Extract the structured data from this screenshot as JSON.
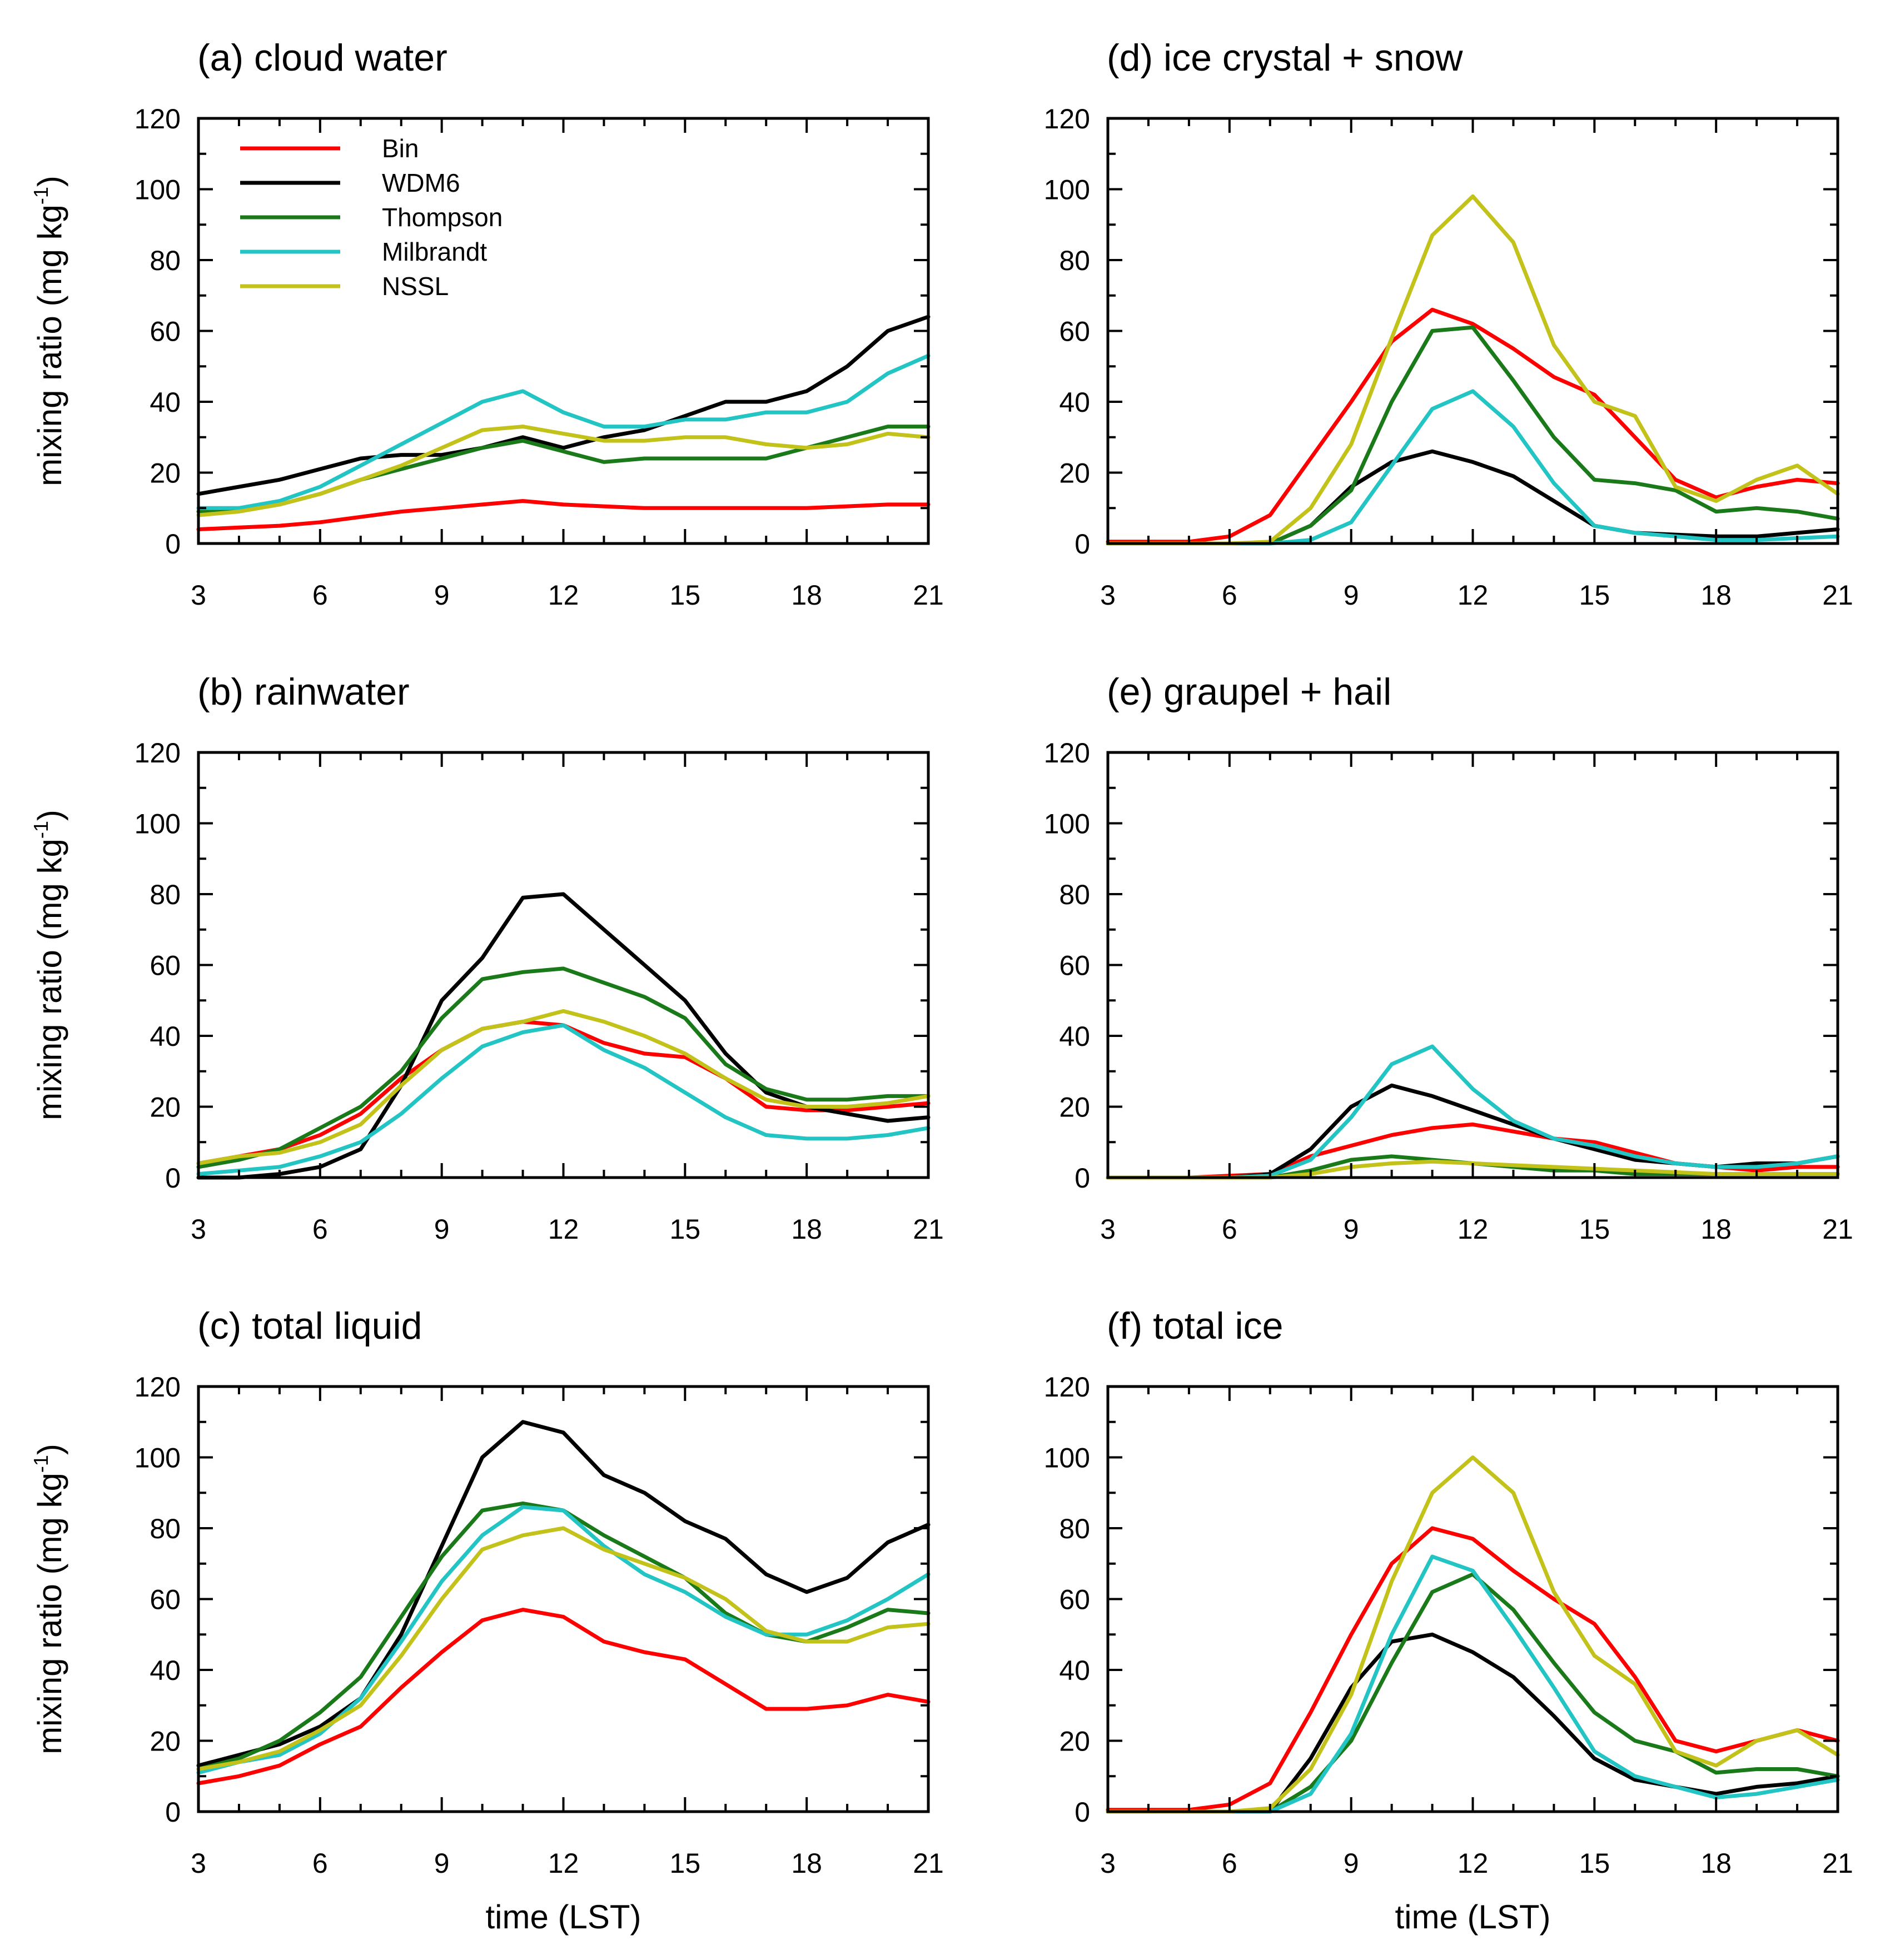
{
  "figure": {
    "ylabel_main": "mixing ratio (mg kg",
    "ylabel_sup": "-1",
    "ylabel_close": ")",
    "xlabel": "time (LST)"
  },
  "legend": [
    {
      "name": "Bin",
      "color": "#ff0000"
    },
    {
      "name": "WDM6",
      "color": "#000000"
    },
    {
      "name": "Thompson",
      "color": "#1a7a1a"
    },
    {
      "name": "Milbrandt",
      "color": "#22c4c4"
    },
    {
      "name": "NSSL",
      "color": "#c2c21a"
    }
  ],
  "chart_data": [
    {
      "type": "line",
      "title": "(a) cloud water",
      "xlabel": "",
      "ylabel": "mixing ratio (mg kg-1)",
      "xlim": [
        3,
        21
      ],
      "ylim": [
        0,
        120
      ],
      "xticks": [
        "3",
        "6",
        "9",
        "12",
        "15",
        "18",
        "21"
      ],
      "yticks": [
        "0",
        "20",
        "40",
        "60",
        "80",
        "100",
        "120"
      ],
      "x": [
        3,
        4,
        5,
        6,
        7,
        8,
        9,
        10,
        11,
        12,
        13,
        14,
        15,
        16,
        17,
        18,
        19,
        20,
        21
      ],
      "series": [
        {
          "name": "Bin",
          "values": [
            4,
            4.5,
            5,
            6,
            7.5,
            9,
            10,
            11,
            12,
            11,
            10.5,
            10,
            10,
            10,
            10,
            10,
            10.5,
            11,
            11
          ]
        },
        {
          "name": "WDM6",
          "values": [
            14,
            16,
            18,
            21,
            24,
            25,
            25,
            27,
            30,
            27,
            30,
            32,
            36,
            40,
            40,
            43,
            50,
            60,
            64
          ]
        },
        {
          "name": "Thompson",
          "values": [
            9,
            10,
            11,
            14,
            18,
            21,
            24,
            27,
            29,
            26,
            23,
            24,
            24,
            24,
            24,
            27,
            30,
            33,
            33
          ]
        },
        {
          "name": "Milbrandt",
          "values": [
            10,
            10,
            12,
            16,
            22,
            28,
            34,
            40,
            43,
            37,
            33,
            33,
            35,
            35,
            37,
            37,
            40,
            48,
            53
          ]
        },
        {
          "name": "NSSL",
          "values": [
            8,
            9,
            11,
            14,
            18,
            22,
            27,
            32,
            33,
            31,
            29,
            29,
            30,
            30,
            28,
            27,
            28,
            31,
            30
          ]
        }
      ]
    },
    {
      "type": "line",
      "title": "(d) ice crystal + snow",
      "xlabel": "",
      "ylabel": "",
      "xlim": [
        3,
        21
      ],
      "ylim": [
        0,
        120
      ],
      "xticks": [
        "3",
        "6",
        "9",
        "12",
        "15",
        "18",
        "21"
      ],
      "yticks": [
        "0",
        "20",
        "40",
        "60",
        "80",
        "100",
        "120"
      ],
      "x": [
        3,
        4,
        5,
        6,
        7,
        8,
        9,
        10,
        11,
        12,
        13,
        14,
        15,
        16,
        17,
        18,
        19,
        20,
        21
      ],
      "series": [
        {
          "name": "Bin",
          "values": [
            0.5,
            0.5,
            0.5,
            2,
            8,
            24,
            40,
            57,
            66,
            62,
            55,
            47,
            42,
            30,
            18,
            13,
            16,
            18,
            17
          ]
        },
        {
          "name": "WDM6",
          "values": [
            0,
            0,
            0,
            0,
            0,
            5,
            16,
            23,
            26,
            23,
            19,
            12,
            5,
            3,
            2.5,
            2,
            2,
            3,
            4
          ]
        },
        {
          "name": "Thompson",
          "values": [
            0,
            0,
            0,
            0,
            0,
            5,
            15,
            40,
            60,
            61,
            46,
            30,
            18,
            17,
            15,
            9,
            10,
            9,
            7
          ]
        },
        {
          "name": "Milbrandt",
          "values": [
            0,
            0,
            0,
            0,
            0,
            1,
            6,
            22,
            38,
            43,
            33,
            17,
            5,
            3,
            2,
            1,
            1,
            1.5,
            2
          ]
        },
        {
          "name": "NSSL",
          "values": [
            0,
            0,
            0,
            0,
            0.5,
            10,
            28,
            58,
            87,
            98,
            85,
            56,
            40,
            36,
            16,
            12,
            18,
            22,
            14
          ]
        }
      ]
    },
    {
      "type": "line",
      "title": "(b) rainwater",
      "xlabel": "",
      "ylabel": "mixing ratio (mg kg-1)",
      "xlim": [
        3,
        21
      ],
      "ylim": [
        0,
        120
      ],
      "xticks": [
        "3",
        "6",
        "9",
        "12",
        "15",
        "18",
        "21"
      ],
      "yticks": [
        "0",
        "20",
        "40",
        "60",
        "80",
        "100",
        "120"
      ],
      "x": [
        3,
        4,
        5,
        6,
        7,
        8,
        9,
        10,
        11,
        12,
        13,
        14,
        15,
        16,
        17,
        18,
        19,
        20,
        21
      ],
      "series": [
        {
          "name": "Bin",
          "values": [
            4,
            6,
            8,
            12,
            18,
            28,
            36,
            42,
            44,
            43,
            38,
            35,
            34,
            28,
            20,
            19,
            19,
            20,
            21
          ]
        },
        {
          "name": "WDM6",
          "values": [
            0,
            0,
            1,
            3,
            8,
            26,
            50,
            62,
            79,
            80,
            70,
            60,
            50,
            35,
            24,
            20,
            18,
            16,
            17
          ]
        },
        {
          "name": "Thompson",
          "values": [
            3,
            5,
            8,
            14,
            20,
            30,
            45,
            56,
            58,
            59,
            55,
            51,
            45,
            32,
            25,
            22,
            22,
            23,
            23
          ]
        },
        {
          "name": "Milbrandt",
          "values": [
            1,
            2,
            3,
            6,
            10,
            18,
            28,
            37,
            41,
            43,
            36,
            31,
            24,
            17,
            12,
            11,
            11,
            12,
            14
          ]
        },
        {
          "name": "NSSL",
          "values": [
            4,
            6,
            7,
            10,
            15,
            26,
            36,
            42,
            44,
            47,
            44,
            40,
            35,
            28,
            22,
            20,
            20,
            21,
            23
          ]
        }
      ]
    },
    {
      "type": "line",
      "title": "(e) graupel + hail",
      "xlabel": "",
      "ylabel": "",
      "xlim": [
        3,
        21
      ],
      "ylim": [
        0,
        120
      ],
      "xticks": [
        "3",
        "6",
        "9",
        "12",
        "15",
        "18",
        "21"
      ],
      "yticks": [
        "0",
        "20",
        "40",
        "60",
        "80",
        "100",
        "120"
      ],
      "x": [
        3,
        4,
        5,
        6,
        7,
        8,
        9,
        10,
        11,
        12,
        13,
        14,
        15,
        16,
        17,
        18,
        19,
        20,
        21
      ],
      "series": [
        {
          "name": "Bin",
          "values": [
            0,
            0,
            0,
            0.5,
            1,
            6,
            9,
            12,
            14,
            15,
            13,
            11,
            10,
            7,
            4,
            3,
            2,
            3,
            3
          ]
        },
        {
          "name": "WDM6",
          "values": [
            0,
            0,
            0,
            0,
            1,
            8,
            20,
            26,
            23,
            19,
            15,
            11,
            8,
            5,
            4,
            3,
            4,
            4,
            6
          ]
        },
        {
          "name": "Thompson",
          "values": [
            0,
            0,
            0,
            0,
            0,
            2,
            5,
            6,
            5,
            4,
            3,
            2,
            2,
            1,
            1,
            1,
            1,
            1,
            1
          ]
        },
        {
          "name": "Milbrandt",
          "values": [
            0,
            0,
            0,
            0,
            0.5,
            5,
            17,
            32,
            37,
            25,
            16,
            11,
            9,
            6,
            4,
            3,
            3,
            4,
            6
          ]
        },
        {
          "name": "NSSL",
          "values": [
            0,
            0,
            0,
            0,
            0,
            1,
            3,
            4,
            4.5,
            4,
            3.5,
            3,
            2.5,
            2,
            1.5,
            1,
            1,
            1,
            1
          ]
        }
      ]
    },
    {
      "type": "line",
      "title": "(c) total liquid",
      "xlabel": "time (LST)",
      "ylabel": "mixing ratio (mg kg-1)",
      "xlim": [
        3,
        21
      ],
      "ylim": [
        0,
        120
      ],
      "xticks": [
        "3",
        "6",
        "9",
        "12",
        "15",
        "18",
        "21"
      ],
      "yticks": [
        "0",
        "20",
        "40",
        "60",
        "80",
        "100",
        "120"
      ],
      "x": [
        3,
        4,
        5,
        6,
        7,
        8,
        9,
        10,
        11,
        12,
        13,
        14,
        15,
        16,
        17,
        18,
        19,
        20,
        21
      ],
      "series": [
        {
          "name": "Bin",
          "values": [
            8,
            10,
            13,
            19,
            24,
            35,
            45,
            54,
            57,
            55,
            48,
            45,
            43,
            36,
            29,
            29,
            30,
            33,
            31
          ]
        },
        {
          "name": "WDM6",
          "values": [
            13,
            16,
            19,
            24,
            32,
            50,
            75,
            100,
            110,
            107,
            95,
            90,
            82,
            77,
            67,
            62,
            66,
            76,
            81
          ]
        },
        {
          "name": "Thompson",
          "values": [
            12,
            15,
            20,
            28,
            38,
            55,
            72,
            85,
            87,
            85,
            78,
            72,
            66,
            56,
            50,
            48,
            52,
            57,
            56
          ]
        },
        {
          "name": "Milbrandt",
          "values": [
            11,
            14,
            16,
            22,
            32,
            48,
            65,
            78,
            86,
            85,
            75,
            67,
            62,
            55,
            50,
            50,
            54,
            60,
            67
          ]
        },
        {
          "name": "NSSL",
          "values": [
            12,
            14,
            17,
            23,
            30,
            44,
            60,
            74,
            78,
            80,
            74,
            70,
            66,
            60,
            51,
            48,
            48,
            52,
            53
          ]
        }
      ]
    },
    {
      "type": "line",
      "title": "(f) total ice",
      "xlabel": "time (LST)",
      "ylabel": "",
      "xlim": [
        3,
        21
      ],
      "ylim": [
        0,
        120
      ],
      "xticks": [
        "3",
        "6",
        "9",
        "12",
        "15",
        "18",
        "21"
      ],
      "yticks": [
        "0",
        "20",
        "40",
        "60",
        "80",
        "100",
        "120"
      ],
      "x": [
        3,
        4,
        5,
        6,
        7,
        8,
        9,
        10,
        11,
        12,
        13,
        14,
        15,
        16,
        17,
        18,
        19,
        20,
        21
      ],
      "series": [
        {
          "name": "Bin",
          "values": [
            0.5,
            0.5,
            0.5,
            2,
            8,
            28,
            50,
            70,
            80,
            77,
            68,
            60,
            53,
            38,
            20,
            17,
            20,
            23,
            20
          ]
        },
        {
          "name": "WDM6",
          "values": [
            0,
            0,
            0,
            0,
            0,
            15,
            35,
            48,
            50,
            45,
            38,
            27,
            15,
            9,
            7,
            5,
            7,
            8,
            10
          ]
        },
        {
          "name": "Thompson",
          "values": [
            0,
            0,
            0,
            0,
            0,
            7,
            20,
            42,
            62,
            67,
            57,
            42,
            28,
            20,
            17,
            11,
            12,
            12,
            10
          ]
        },
        {
          "name": "Milbrandt",
          "values": [
            0,
            0,
            0,
            0,
            0,
            5,
            22,
            50,
            72,
            68,
            52,
            35,
            17,
            10,
            7,
            4,
            5,
            7,
            9
          ]
        },
        {
          "name": "NSSL",
          "values": [
            0,
            0,
            0,
            0,
            1,
            12,
            33,
            65,
            90,
            100,
            90,
            62,
            44,
            36,
            17,
            13,
            20,
            23,
            16
          ]
        }
      ]
    }
  ]
}
